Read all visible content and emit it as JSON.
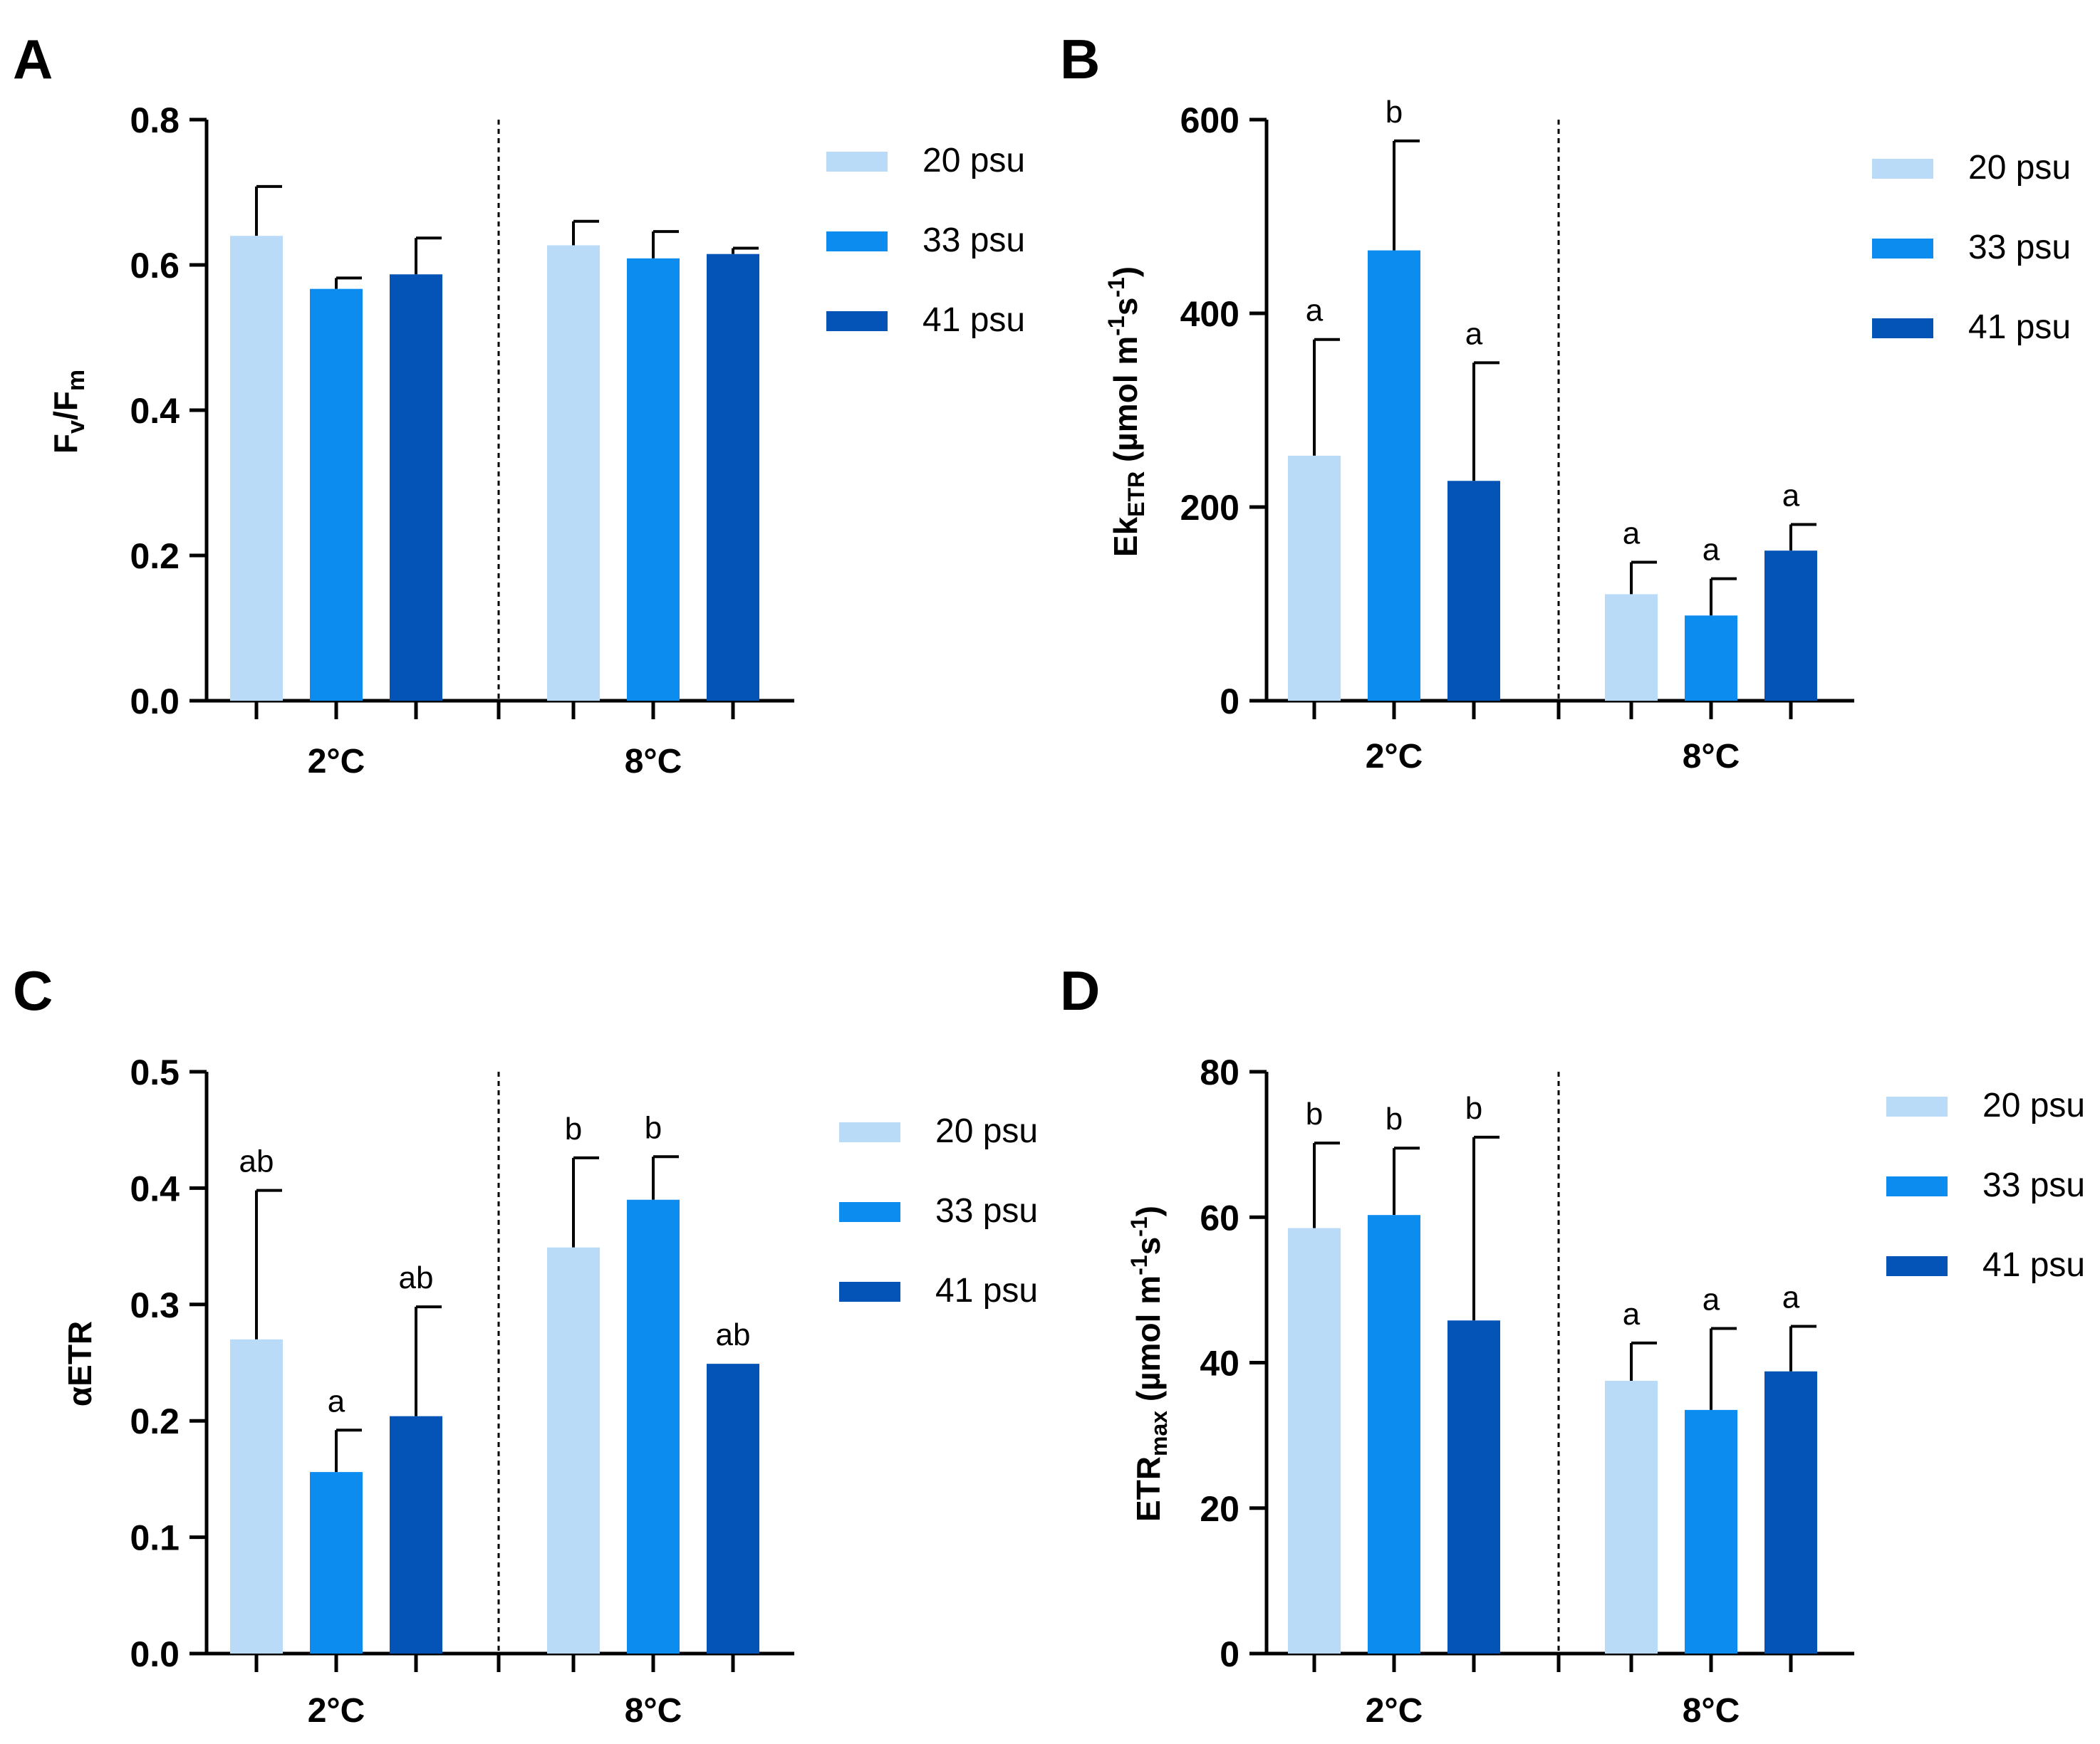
{
  "chart_data": [
    {
      "panel": "A",
      "type": "bar",
      "categories": [
        "2°C",
        "8°C"
      ],
      "series": [
        {
          "name": "20 psu",
          "values": [
            0.64,
            0.627
          ],
          "errors": [
            0.068,
            0.033
          ],
          "color": "#b9dbf8"
        },
        {
          "name": "33 psu",
          "values": [
            0.567,
            0.609
          ],
          "errors": [
            0.015,
            0.037
          ],
          "color": "#0d8cf0"
        },
        {
          "name": "41 psu",
          "values": [
            0.587,
            0.615
          ],
          "errors": [
            0.05,
            0.008
          ],
          "color": "#0354b6"
        }
      ],
      "ylabel": "Fv/Fm",
      "ylim": [
        0,
        0.8
      ],
      "yticks": [
        "0.0",
        "0.2",
        "0.4",
        "0.6",
        "0.8"
      ],
      "legend": "right"
    },
    {
      "panel": "B",
      "type": "bar",
      "categories": [
        "2°C",
        "8°C"
      ],
      "series": [
        {
          "name": "20 psu",
          "values": [
            253,
            110
          ],
          "errors": [
            120,
            33
          ],
          "letters": [
            "a",
            "a"
          ],
          "color": "#b9dbf8"
        },
        {
          "name": "33 psu",
          "values": [
            465,
            88
          ],
          "errors": [
            113,
            38
          ],
          "letters": [
            "b",
            "a"
          ],
          "color": "#0d8cf0"
        },
        {
          "name": "41 psu",
          "values": [
            227,
            155
          ],
          "errors": [
            122,
            27
          ],
          "letters": [
            "a",
            "a"
          ],
          "color": "#0354b6"
        }
      ],
      "ylabel": "Ek (µmol m s)",
      "ylim": [
        0,
        600
      ],
      "yticks": [
        "0",
        "200",
        "400",
        "600"
      ],
      "legend": "right"
    },
    {
      "panel": "C",
      "type": "bar",
      "categories": [
        "2°C",
        "8°C"
      ],
      "series": [
        {
          "name": "20 psu",
          "values": [
            0.27,
            0.349
          ],
          "errors": [
            0.128,
            0.077
          ],
          "letters": [
            "ab",
            "b"
          ],
          "color": "#b9dbf8"
        },
        {
          "name": "33 psu",
          "values": [
            0.156,
            0.39
          ],
          "errors": [
            0.036,
            0.037
          ],
          "letters": [
            "a",
            "b"
          ],
          "color": "#0d8cf0"
        },
        {
          "name": "41 psu",
          "values": [
            0.204,
            0.249
          ],
          "errors": [
            0.094,
            0
          ],
          "letters": [
            "ab",
            "ab"
          ],
          "color": "#0354b6"
        }
      ],
      "ylabel": "αETR",
      "ylim": [
        0,
        0.5
      ],
      "yticks": [
        "0.0",
        "0.1",
        "0.2",
        "0.3",
        "0.4",
        "0.5"
      ],
      "legend": "right"
    },
    {
      "panel": "D",
      "type": "bar",
      "categories": [
        "2°C",
        "8°C"
      ],
      "series": [
        {
          "name": "20 psu",
          "values": [
            58.5,
            37.5
          ],
          "errors": [
            11.7,
            5.2
          ],
          "letters": [
            "b",
            "a"
          ],
          "color": "#b9dbf8"
        },
        {
          "name": "33 psu",
          "values": [
            60.3,
            33.5
          ],
          "errors": [
            9.2,
            11.2
          ],
          "letters": [
            "b",
            "a"
          ],
          "color": "#0d8cf0"
        },
        {
          "name": "41 psu",
          "values": [
            45.8,
            38.8
          ],
          "errors": [
            25.2,
            6.2
          ],
          "letters": [
            "b",
            "a"
          ],
          "color": "#0354b6"
        }
      ],
      "ylabel": "ETR (µmol m s)",
      "ylim": [
        0,
        80
      ],
      "yticks": [
        "0",
        "20",
        "40",
        "60",
        "80"
      ],
      "legend": "right"
    }
  ],
  "axis_title_parts": {
    "fvfm": {
      "main": "F",
      "sub1": "v",
      "sep": "/F",
      "sub2": "m"
    },
    "ek": {
      "main": "Ek",
      "sub": "ETR",
      "unit_a": " (µmol m",
      "sup1": "-1",
      "unit_b": "s",
      "sup2": "-1",
      "unit_c": ")"
    },
    "etr": {
      "main": "ETR",
      "sub": "max",
      "unit_a": " (µmol m",
      "sup1": "-1",
      "unit_b": "s",
      "sup2": "-1",
      "unit_c": ")"
    }
  }
}
